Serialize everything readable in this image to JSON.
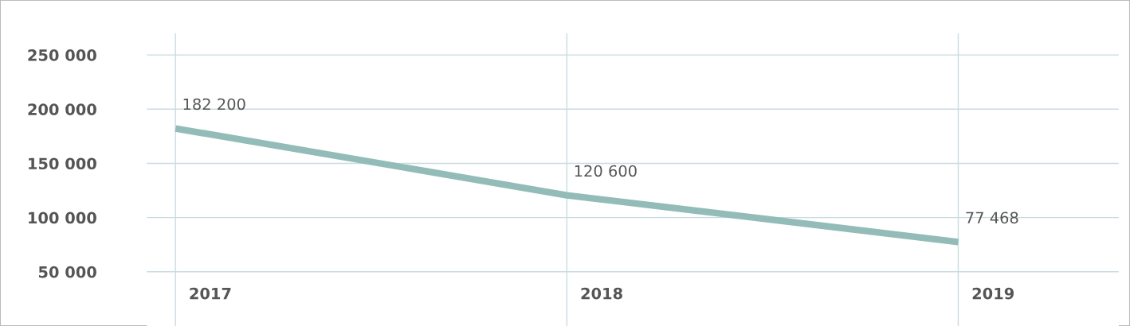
{
  "chart_data": {
    "type": "line",
    "categories": [
      "2017",
      "2018",
      "2019"
    ],
    "series": [
      {
        "color": "#93bcb8",
        "values": [
          182200,
          120600,
          77468
        ]
      }
    ],
    "ylim": [
      0,
      270000
    ],
    "yticks": [
      {
        "value": 50000,
        "label": "50 000"
      },
      {
        "value": 100000,
        "label": "100 000"
      },
      {
        "value": 150000,
        "label": "150 000"
      },
      {
        "value": 200000,
        "label": "200 000"
      },
      {
        "value": 250000,
        "label": "250 000"
      }
    ],
    "value_labels": [
      "182 200",
      "120 600",
      "77 468"
    ],
    "grid": true,
    "legend": false,
    "marker": "none",
    "line_style": "solid"
  }
}
